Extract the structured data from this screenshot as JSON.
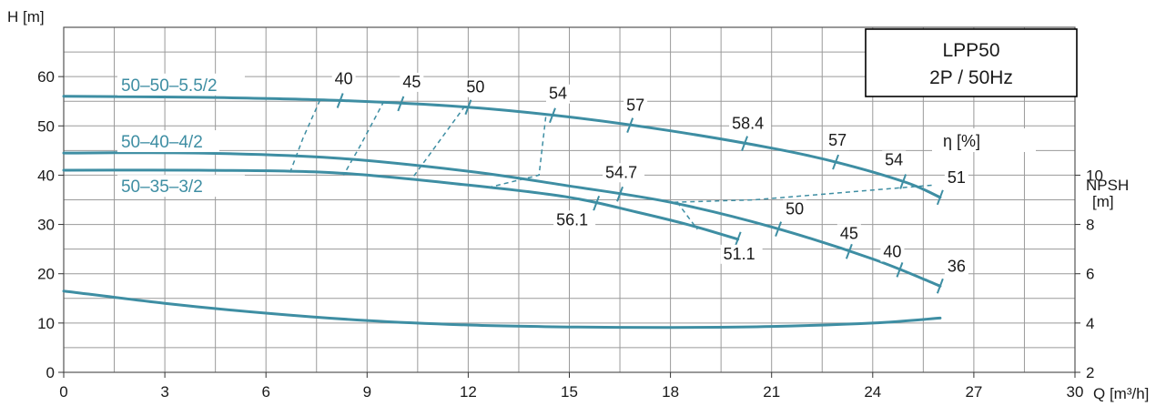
{
  "chart_data": {
    "type": "line",
    "title_lines": [
      "LPP50",
      "2P / 50Hz"
    ],
    "x_axis": {
      "label": "Q [m³/h]",
      "range": [
        0,
        30
      ],
      "ticks": [
        0,
        3,
        6,
        9,
        12,
        15,
        18,
        21,
        24,
        27,
        30
      ]
    },
    "y_axis": {
      "label": "H [m]",
      "range": [
        0,
        70
      ],
      "ticks": [
        0,
        10,
        20,
        30,
        40,
        50,
        60
      ]
    },
    "npsh_axis": {
      "label_lines": [
        "NPSH",
        "[m]"
      ],
      "ticks": [
        2,
        4,
        6,
        8,
        10
      ]
    },
    "efficiency_label": "η  [%]",
    "grid": true,
    "colors": {
      "curve": "#3e8ea3",
      "grid": "#9a9a9a",
      "text": "#1a1a1a"
    },
    "series": [
      {
        "name": "50–50–5.5/2",
        "points": [
          [
            0,
            56
          ],
          [
            4,
            55.8
          ],
          [
            8,
            55.2
          ],
          [
            12,
            53.8
          ],
          [
            15,
            51.8
          ],
          [
            18,
            49
          ],
          [
            21,
            45.5
          ],
          [
            23,
            42.5
          ],
          [
            25,
            38.5
          ],
          [
            26,
            35.5
          ]
        ],
        "efficiency_marks": [
          {
            "q": 8.2,
            "label": "40"
          },
          {
            "q": 10,
            "label": "45"
          },
          {
            "q": 12,
            "label": "50"
          },
          {
            "q": 14.5,
            "label": "54"
          },
          {
            "q": 16.8,
            "label": "57"
          },
          {
            "q": 20.2,
            "label": "58.4"
          },
          {
            "q": 22.9,
            "label": "57"
          },
          {
            "q": 24.9,
            "label": "54"
          },
          {
            "q": 26,
            "label": "51"
          }
        ]
      },
      {
        "name": "50–40–4/2",
        "points": [
          [
            0,
            44.5
          ],
          [
            4,
            44.5
          ],
          [
            8,
            43.5
          ],
          [
            12,
            40.8
          ],
          [
            15,
            37.8
          ],
          [
            18,
            34.5
          ],
          [
            21,
            29.5
          ],
          [
            24,
            23
          ],
          [
            26,
            17.5
          ]
        ],
        "efficiency_marks": [
          {
            "q": 16.5,
            "label": "54.7"
          },
          {
            "q": 21.2,
            "label": "50"
          },
          {
            "q": 23.3,
            "label": "45"
          },
          {
            "q": 24.8,
            "label": "40"
          },
          {
            "q": 26,
            "label": "36"
          }
        ]
      },
      {
        "name": "50–35–3/2",
        "points": [
          [
            0,
            41
          ],
          [
            4,
            41
          ],
          [
            8,
            40.5
          ],
          [
            12,
            38
          ],
          [
            15,
            35.5
          ],
          [
            17,
            32.5
          ],
          [
            18.5,
            30
          ],
          [
            20,
            27
          ]
        ],
        "efficiency_marks": [
          {
            "q": 15.8,
            "label": "56.1"
          },
          {
            "q": 20,
            "label": "51.1"
          }
        ]
      },
      {
        "name": "",
        "role": "NPSH",
        "points": [
          [
            0,
            16.5
          ],
          [
            3,
            14
          ],
          [
            6,
            12
          ],
          [
            9,
            10.5
          ],
          [
            12,
            9.6
          ],
          [
            15,
            9.2
          ],
          [
            18,
            9.1
          ],
          [
            21,
            9.3
          ],
          [
            24,
            10
          ],
          [
            26,
            11
          ]
        ]
      }
    ],
    "iso_efficiency_lines": [
      {
        "label": "40",
        "points": [
          [
            7.6,
            55.2
          ],
          [
            7.1,
            47.5
          ],
          [
            6.7,
            40.3
          ]
        ]
      },
      {
        "label": "45",
        "points": [
          [
            9.5,
            55.0
          ],
          [
            8.8,
            46.0
          ],
          [
            8.3,
            40.0
          ]
        ]
      },
      {
        "label": "50",
        "points": [
          [
            11.9,
            54.0
          ],
          [
            11.1,
            46.5
          ],
          [
            10.3,
            39.0
          ]
        ]
      },
      {
        "label": "54",
        "points": [
          [
            14.3,
            51.8
          ],
          [
            14.1,
            40.0
          ],
          [
            12.6,
            37.5
          ]
        ]
      },
      {
        "label": "51",
        "points": [
          [
            18.1,
            34.5
          ],
          [
            20.5,
            35.0
          ],
          [
            25.8,
            38.0
          ]
        ]
      },
      {
        "label": "",
        "points": [
          [
            18.2,
            34.5
          ],
          [
            18.8,
            29.0
          ]
        ]
      }
    ]
  }
}
